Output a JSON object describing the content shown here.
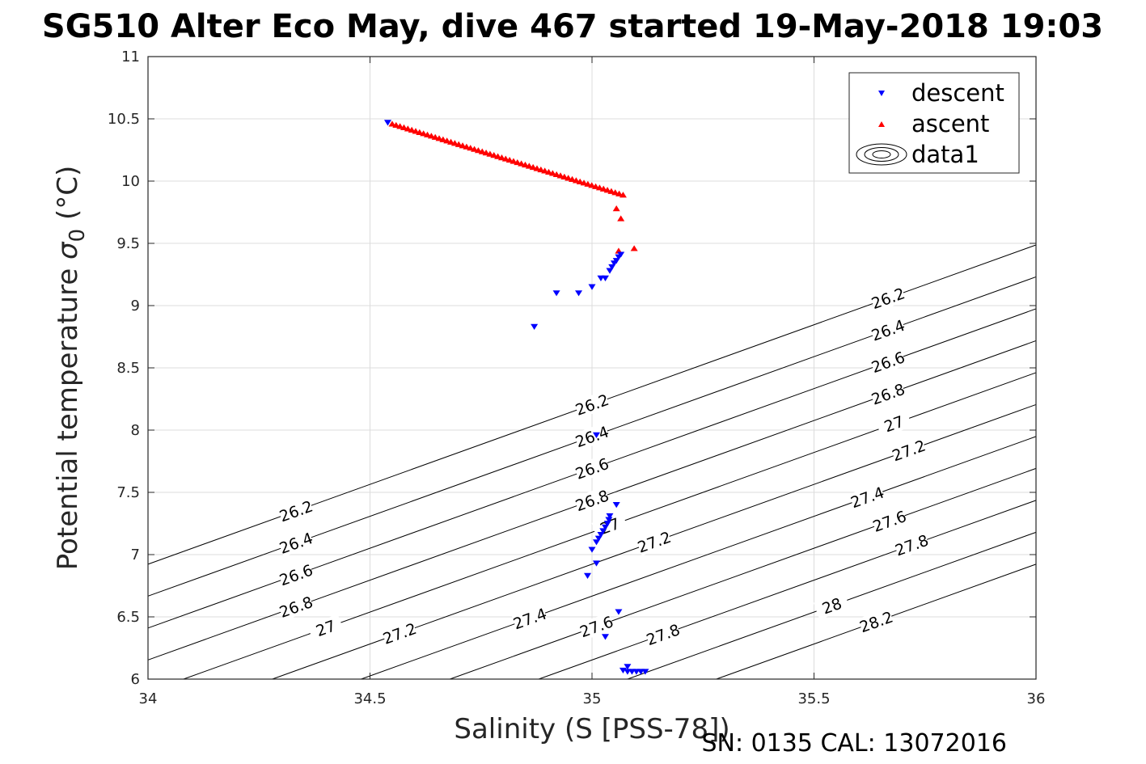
{
  "chart_data": {
    "type": "scatter",
    "title": "SG510 Alter Eco May, dive 467 started 19-May-2018 19:03",
    "xlabel": "Salinity (S [PSS-78])",
    "ylabel_text": "Potential temperature ",
    "ylabel_symbol": "σ",
    "ylabel_subscript": "0",
    "ylabel_unit": " (°C)",
    "footer": "SN: 0135  CAL: 13072016",
    "xlim": [
      34,
      36
    ],
    "ylim": [
      6,
      11
    ],
    "xticks": [
      34,
      34.5,
      35,
      35.5,
      36
    ],
    "xtick_labels": [
      "34",
      "34.5",
      "35",
      "35.5",
      "36"
    ],
    "yticks": [
      6,
      6.5,
      7,
      7.5,
      8,
      8.5,
      9,
      9.5,
      10,
      10.5,
      11
    ],
    "ytick_labels": [
      "6",
      "6.5",
      "7",
      "7.5",
      "8",
      "8.5",
      "9",
      "9.5",
      "10",
      "10.5",
      "11"
    ],
    "grid": true,
    "legend_position": "top-right",
    "series": [
      {
        "name": "descent",
        "marker": "triangle-down",
        "color": "#0000ff",
        "points": [
          [
            34.54,
            10.47
          ],
          [
            34.87,
            8.83
          ],
          [
            34.92,
            9.1
          ],
          [
            34.97,
            9.1
          ],
          [
            35.0,
            9.15
          ],
          [
            35.02,
            9.22
          ],
          [
            35.03,
            9.22
          ],
          [
            35.04,
            9.28
          ],
          [
            35.045,
            9.31
          ],
          [
            35.05,
            9.34
          ],
          [
            35.055,
            9.36
          ],
          [
            35.06,
            9.39
          ],
          [
            35.065,
            9.41
          ],
          [
            35.01,
            7.96
          ],
          [
            35.055,
            7.4
          ],
          [
            35.04,
            7.31
          ],
          [
            35.038,
            7.28
          ],
          [
            35.035,
            7.25
          ],
          [
            35.03,
            7.22
          ],
          [
            35.025,
            7.19
          ],
          [
            35.02,
            7.16
          ],
          [
            35.015,
            7.13
          ],
          [
            35.01,
            7.1
          ],
          [
            35.0,
            7.04
          ],
          [
            35.01,
            6.93
          ],
          [
            34.99,
            6.83
          ],
          [
            35.06,
            6.54
          ],
          [
            35.03,
            6.34
          ],
          [
            35.08,
            6.1
          ],
          [
            35.07,
            6.07
          ],
          [
            35.08,
            6.06
          ],
          [
            35.09,
            6.06
          ],
          [
            35.1,
            6.06
          ],
          [
            35.11,
            6.06
          ],
          [
            35.12,
            6.06
          ]
        ]
      },
      {
        "name": "ascent",
        "marker": "triangle-up",
        "color": "#ff0000",
        "start": [
          34.55,
          10.46
        ],
        "end": [
          35.07,
          9.89
        ],
        "count": 60,
        "extra_points": [
          [
            35.055,
            9.78
          ],
          [
            35.065,
            9.7
          ],
          [
            35.06,
            9.44
          ],
          [
            35.095,
            9.46
          ]
        ]
      },
      {
        "name": "data1",
        "marker": "contour",
        "color": "#000000",
        "line_slope": 0.78,
        "levels": [
          {
            "label": "26.2",
            "offset": -0.72
          },
          {
            "label": "26.4",
            "offset": -0.52
          },
          {
            "label": "26.6",
            "offset": -0.32
          },
          {
            "label": "26.8",
            "offset": -0.12
          },
          {
            "label": "27",
            "offset": 0.08
          },
          {
            "label": "27.2",
            "offset": 0.28
          },
          {
            "label": "27.4",
            "offset": 0.48
          },
          {
            "label": "27.6",
            "offset": 0.68
          },
          {
            "label": "27.8",
            "offset": 0.88
          },
          {
            "label": "28",
            "offset": 1.08
          },
          {
            "label": "28.2",
            "offset": 1.28
          }
        ]
      }
    ]
  }
}
